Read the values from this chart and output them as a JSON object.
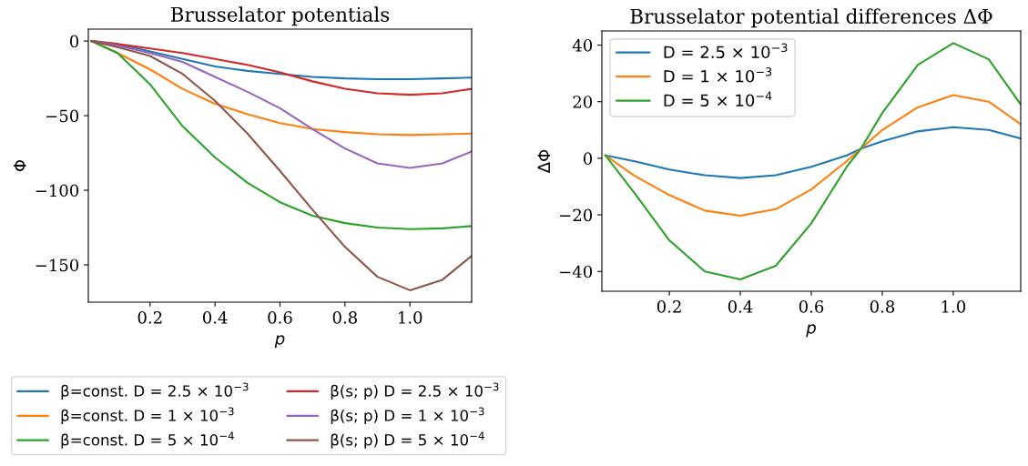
{
  "chart_data": [
    {
      "type": "line",
      "title": "Brusselator potentials",
      "xlabel": "p",
      "ylabel": "Φ",
      "x": [
        0.02,
        0.1,
        0.2,
        0.3,
        0.4,
        0.5,
        0.6,
        0.7,
        0.8,
        0.9,
        1.0,
        1.1,
        1.19
      ],
      "xlim": [
        0.01,
        1.19
      ],
      "xticks": [
        0.2,
        0.4,
        0.6,
        0.8,
        {
          "value": 1.0,
          "label": "1.0"
        }
      ],
      "ylim": [
        -175,
        8
      ],
      "yticks": [
        0,
        -50,
        -100,
        -150
      ],
      "grid": false,
      "legend": "bottom",
      "marker": "none",
      "line_style": "solid",
      "series": [
        {
          "name": "β=const. D = 2.5 × 10$^{−3}$",
          "color": "#1f77b4",
          "values": [
            0,
            -2,
            -7,
            -12,
            -17,
            -20,
            -22,
            -24,
            -25,
            -25.5,
            -25.5,
            -25,
            -24.5
          ]
        },
        {
          "name": "β=const. D = 1 × 10$^{−3}$",
          "color": "#ff7f0e",
          "values": [
            0,
            -8,
            -19,
            -32,
            -42,
            -49,
            -55,
            -59,
            -61,
            -62.5,
            -63,
            -62.5,
            -62
          ]
        },
        {
          "name": "β=const. D = 5 × 10$^{−4}$",
          "color": "#2ca02c",
          "values": [
            0,
            -8,
            -29,
            -57,
            -78,
            -95,
            -108,
            -117,
            -122,
            -125,
            -126,
            -125.5,
            -124
          ]
        },
        {
          "name": "β(s; p) D = 2.5 × 10$^{−3}$",
          "color": "#d62728",
          "values": [
            0,
            -2,
            -5,
            -8,
            -12,
            -16,
            -21,
            -27,
            -32,
            -35,
            -36,
            -35,
            -32
          ]
        },
        {
          "name": "β(s; p) D = 1 × 10$^{−3}$",
          "color": "#9467bd",
          "values": [
            0,
            -3,
            -8,
            -14,
            -24,
            -34,
            -45,
            -59,
            -72,
            -82,
            -85,
            -82,
            -74
          ]
        },
        {
          "name": "β(s; p) D = 5 × 10$^{−4}$",
          "color": "#8c564b",
          "values": [
            0,
            -4,
            -10,
            -22,
            -40,
            -62,
            -87,
            -113,
            -138,
            -158,
            -167,
            -160,
            -144
          ]
        }
      ]
    },
    {
      "type": "line",
      "title": "Brusselator potential differences ΔΦ",
      "xlabel": "p",
      "ylabel": "ΔΦ",
      "x": [
        0.02,
        0.1,
        0.2,
        0.3,
        0.4,
        0.5,
        0.6,
        0.7,
        0.74,
        0.8,
        0.9,
        1.0,
        1.1,
        1.19
      ],
      "xlim": [
        0.01,
        1.19
      ],
      "xticks": [
        0.2,
        0.4,
        0.6,
        0.8,
        {
          "value": 1.0,
          "label": "1.0"
        }
      ],
      "ylim": [
        -47,
        45
      ],
      "yticks": [
        -40,
        -20,
        0,
        20,
        40
      ],
      "grid": false,
      "legend": "top left",
      "marker": "none",
      "line_style": "solid",
      "series": [
        {
          "name": "D = 2.5 × 10$^{−3}$",
          "color": "#1f77b4",
          "values": [
            1,
            -1,
            -4,
            -6,
            -7,
            -6,
            -3,
            1,
            3.4,
            6,
            9.5,
            11,
            10,
            7
          ]
        },
        {
          "name": "D = 1 × 10$^{−3}$",
          "color": "#ff7f0e",
          "values": [
            1,
            -6,
            -13,
            -18.5,
            -20.3,
            -18,
            -11,
            -1,
            3.4,
            10,
            18,
            22.3,
            20,
            12
          ]
        },
        {
          "name": "D = 5 × 10$^{−4}$",
          "color": "#2ca02c",
          "values": [
            1,
            -12,
            -29,
            -40,
            -42.8,
            -38,
            -23,
            -3,
            3.4,
            16,
            33,
            40.7,
            35,
            19
          ]
        }
      ]
    }
  ]
}
